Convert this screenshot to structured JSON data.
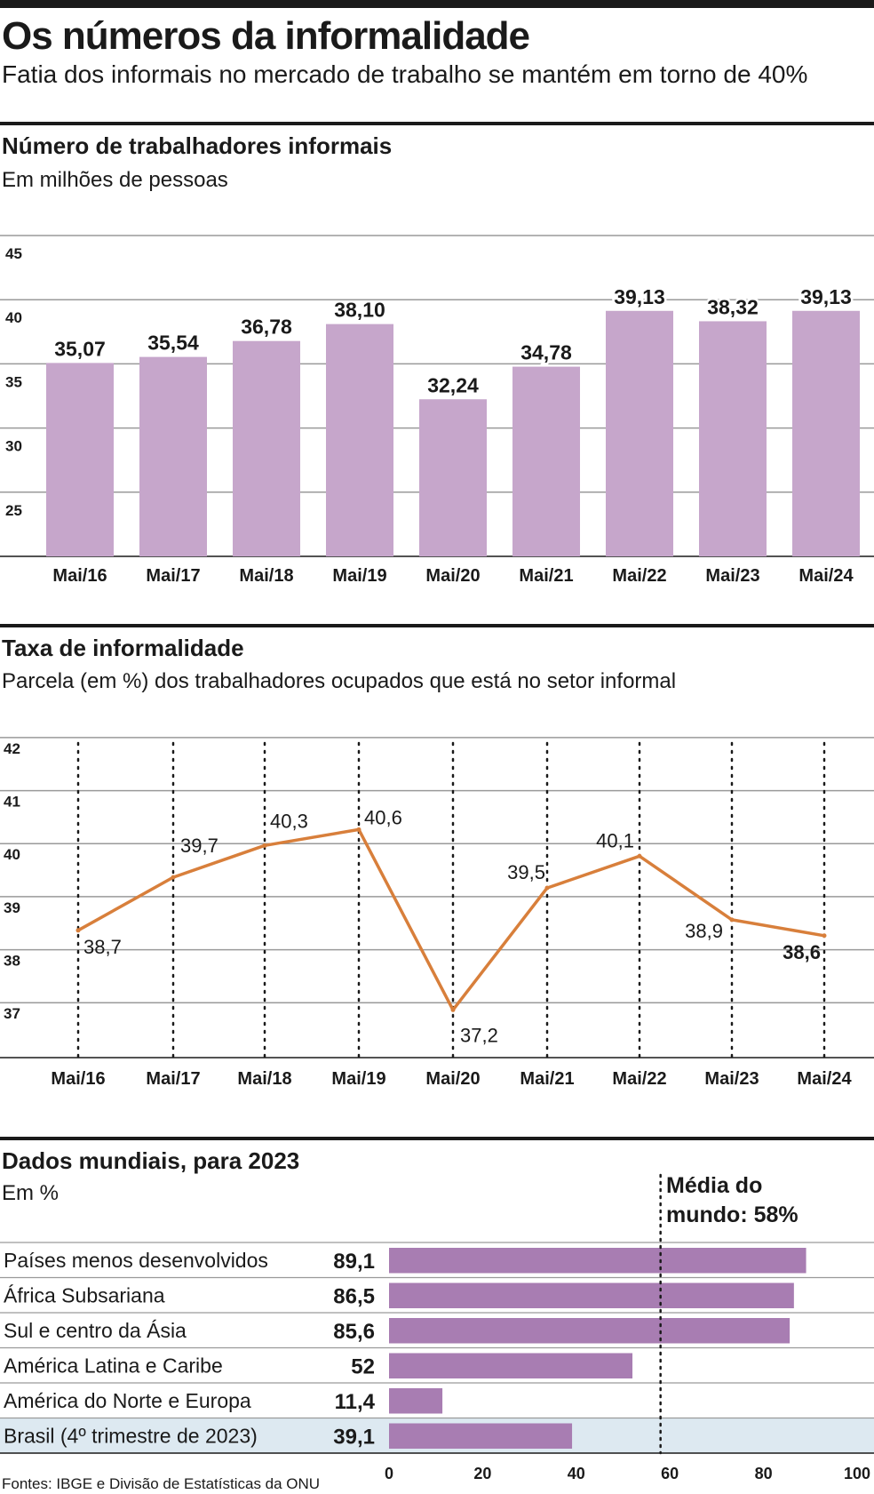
{
  "header": {
    "title": "Os números da informalidade",
    "subtitle": "Fatia dos informais no mercado de trabalho se mantém em torno de 40%"
  },
  "colors": {
    "bar": "#c6a6cb",
    "line": "#d87f3b",
    "world_bar": "#a87db2",
    "highlight_row": "#dde9f1",
    "ink": "#1a1a1a"
  },
  "section1": {
    "title": "Número de trabalhadores informais",
    "subtitle": "Em milhões de pessoas"
  },
  "section2": {
    "title": "Taxa de informalidade",
    "subtitle": "Parcela (em %) dos trabalhadores ocupados que está no setor informal"
  },
  "section3": {
    "title": "Dados mundiais, para 2023",
    "subtitle": "Em %",
    "avg_label_line1": "Média do",
    "avg_label_line2": "mundo: 58%"
  },
  "source": "Fontes: IBGE e Divisão de Estatísticas da ONU",
  "chart_data": [
    {
      "type": "bar",
      "categories": [
        "Mai/16",
        "Mai/17",
        "Mai/18",
        "Mai/19",
        "Mai/20",
        "Mai/21",
        "Mai/22",
        "Mai/23",
        "Mai/24"
      ],
      "values": [
        35.07,
        35.54,
        36.78,
        38.1,
        32.24,
        34.78,
        39.13,
        38.32,
        39.13
      ],
      "value_labels": [
        "35,07",
        "35,54",
        "36,78",
        "38,10",
        "32,24",
        "34,78",
        "39,13",
        "38,32",
        "39,13"
      ],
      "yticks": [
        "25",
        "30",
        "35",
        "40",
        "45"
      ],
      "ylim": [
        20,
        45
      ],
      "grid": true
    },
    {
      "type": "line",
      "categories": [
        "Mai/16",
        "Mai/17",
        "Mai/18",
        "Mai/19",
        "Mai/20",
        "Mai/21",
        "Mai/22",
        "Mai/23",
        "Mai/24"
      ],
      "values": [
        38.7,
        39.7,
        40.3,
        40.6,
        37.2,
        39.5,
        40.1,
        38.9,
        38.6
      ],
      "value_labels": [
        "38,7",
        "39,7",
        "40,3",
        "40,6",
        "37,2",
        "39,5",
        "40,1",
        "38,9",
        "38,6"
      ],
      "yticks": [
        "37",
        "38",
        "39",
        "40",
        "41",
        "42"
      ],
      "ylim": [
        36.3,
        42.3
      ],
      "grid": true
    },
    {
      "type": "bar",
      "orientation": "horizontal",
      "categories": [
        "Países menos desenvolvidos",
        "África Subsariana",
        "Sul e centro da Ásia",
        "América Latina e Caribe",
        "América do Norte e Europa",
        "Brasil (4º trimestre de 2023)"
      ],
      "values": [
        89.1,
        86.5,
        85.6,
        52,
        11.4,
        39.1
      ],
      "value_labels": [
        "89,1",
        "86,5",
        "85,6",
        "52",
        "11,4",
        "39,1"
      ],
      "highlight": "Brasil (4º trimestre de 2023)",
      "xticks": [
        "0",
        "20",
        "40",
        "60",
        "80",
        "100"
      ],
      "xlim": [
        0,
        100
      ],
      "reference_line": 58
    }
  ]
}
